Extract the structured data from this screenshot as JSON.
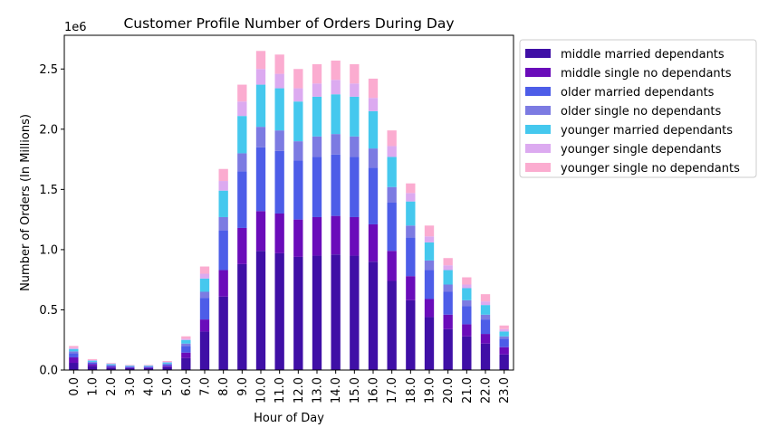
{
  "chart_data": {
    "type": "bar",
    "stacked": true,
    "title": "Customer Profile Number of Orders During Day",
    "xlabel": "Hour of Day",
    "ylabel": "Number of Orders (In Millions)",
    "y_offset_label": "1e6",
    "ylim": [
      0,
      2780000
    ],
    "y_ticks": [
      0,
      500000,
      1000000,
      1500000,
      2000000,
      2500000
    ],
    "y_tick_labels": [
      "0.0",
      "0.5",
      "1.0",
      "1.5",
      "2.0",
      "2.5"
    ],
    "legend_position": "outside upper right",
    "grid": false,
    "categories": [
      "0.0",
      "1.0",
      "2.0",
      "3.0",
      "4.0",
      "5.0",
      "6.0",
      "7.0",
      "8.0",
      "9.0",
      "10.0",
      "11.0",
      "12.0",
      "13.0",
      "14.0",
      "15.0",
      "16.0",
      "17.0",
      "18.0",
      "19.0",
      "20.0",
      "21.0",
      "22.0",
      "23.0"
    ],
    "series": [
      {
        "name": "middle married dependants",
        "color": "#3f0fa6",
        "values": [
          60000,
          35000,
          20000,
          15000,
          15000,
          25000,
          100000,
          320000,
          610000,
          880000,
          990000,
          970000,
          940000,
          950000,
          960000,
          950000,
          900000,
          740000,
          580000,
          440000,
          340000,
          280000,
          220000,
          130000
        ]
      },
      {
        "name": "middle single no dependants",
        "color": "#6a0cba",
        "values": [
          45000,
          15000,
          8000,
          5000,
          5000,
          10000,
          45000,
          100000,
          220000,
          300000,
          330000,
          330000,
          310000,
          320000,
          320000,
          320000,
          310000,
          250000,
          200000,
          150000,
          120000,
          100000,
          80000,
          60000
        ]
      },
      {
        "name": "older married dependants",
        "color": "#4d5de8",
        "values": [
          35000,
          12000,
          10000,
          8000,
          8000,
          12000,
          55000,
          180000,
          330000,
          470000,
          530000,
          520000,
          490000,
          500000,
          510000,
          500000,
          470000,
          400000,
          320000,
          240000,
          190000,
          150000,
          120000,
          70000
        ]
      },
      {
        "name": "older single no dependants",
        "color": "#7c7be2",
        "values": [
          15000,
          6000,
          5000,
          4000,
          4000,
          6000,
          20000,
          50000,
          110000,
          150000,
          170000,
          170000,
          160000,
          170000,
          170000,
          170000,
          160000,
          130000,
          100000,
          80000,
          60000,
          50000,
          40000,
          20000
        ]
      },
      {
        "name": "younger married dependants",
        "color": "#45c8ee",
        "values": [
          20000,
          10000,
          8000,
          5000,
          5000,
          10000,
          30000,
          110000,
          220000,
          310000,
          350000,
          350000,
          330000,
          330000,
          330000,
          330000,
          310000,
          250000,
          200000,
          150000,
          120000,
          100000,
          80000,
          40000
        ]
      },
      {
        "name": "younger single dependants",
        "color": "#dcaaf0",
        "values": [
          10000,
          5000,
          3000,
          2000,
          2000,
          5000,
          10000,
          40000,
          80000,
          120000,
          130000,
          120000,
          110000,
          110000,
          120000,
          110000,
          110000,
          90000,
          70000,
          50000,
          40000,
          30000,
          30000,
          20000
        ]
      },
      {
        "name": "younger single no dependants",
        "color": "#fbacd0",
        "values": [
          15000,
          8000,
          5000,
          4000,
          4000,
          7000,
          20000,
          60000,
          100000,
          140000,
          150000,
          160000,
          160000,
          160000,
          160000,
          160000,
          160000,
          130000,
          80000,
          90000,
          60000,
          60000,
          60000,
          30000
        ]
      }
    ]
  }
}
